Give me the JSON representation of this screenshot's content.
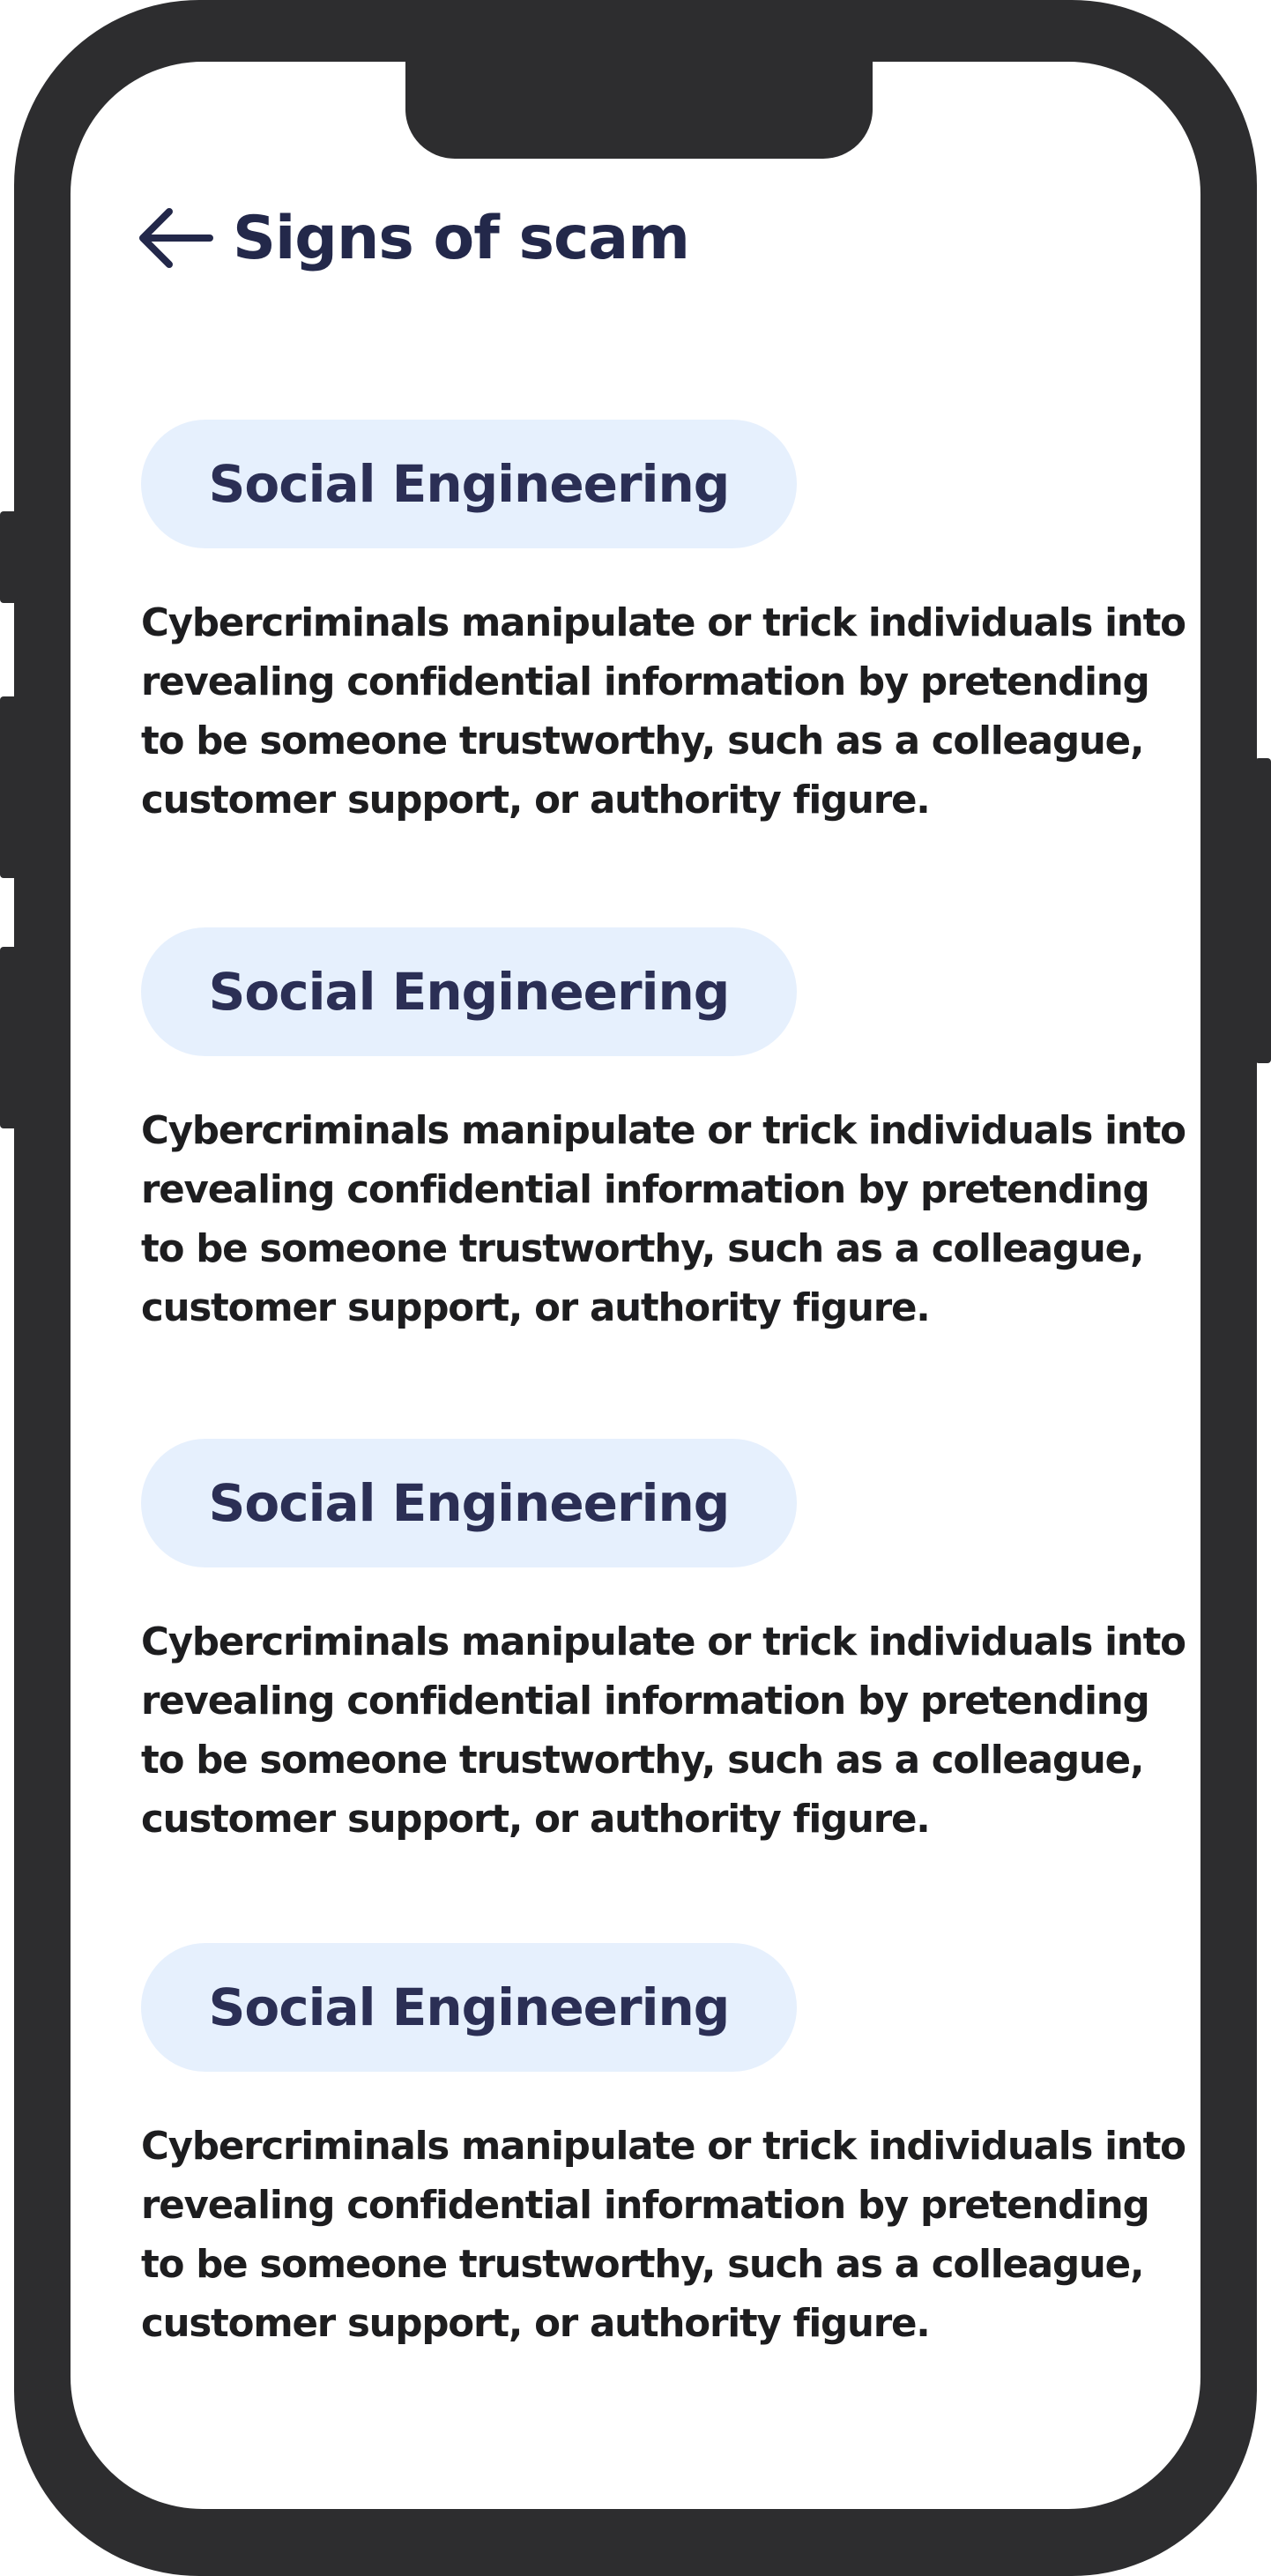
{
  "header": {
    "back_icon": "arrow-left-icon",
    "title": "Signs of scam"
  },
  "colors": {
    "frame": "#2d2d2f",
    "title": "#23284a",
    "pill_bg": "#e6f0fd",
    "pill_text": "#2b2f55",
    "body_text": "#1d1d1f"
  },
  "sections": [
    {
      "title": "Social Engineering",
      "body": "Cybercriminals manipulate or trick individuals into revealing confidential information by pretending to be someone trustworthy, such as a colleague, customer support, or authority figure."
    },
    {
      "title": "Social Engineering",
      "body": "Cybercriminals manipulate or trick individuals into revealing confidential information by pretending to be someone trustworthy, such as a colleague, customer support, or authority figure."
    },
    {
      "title": "Social Engineering",
      "body": "Cybercriminals manipulate or trick individuals into revealing confidential information by pretending to be someone trustworthy, such as a colleague, customer support, or authority figure."
    },
    {
      "title": "Social Engineering",
      "body": "Cybercriminals manipulate or trick individuals into revealing confidential information by pretending to be someone trustworthy, such as a colleague, customer support, or authority figure."
    }
  ]
}
